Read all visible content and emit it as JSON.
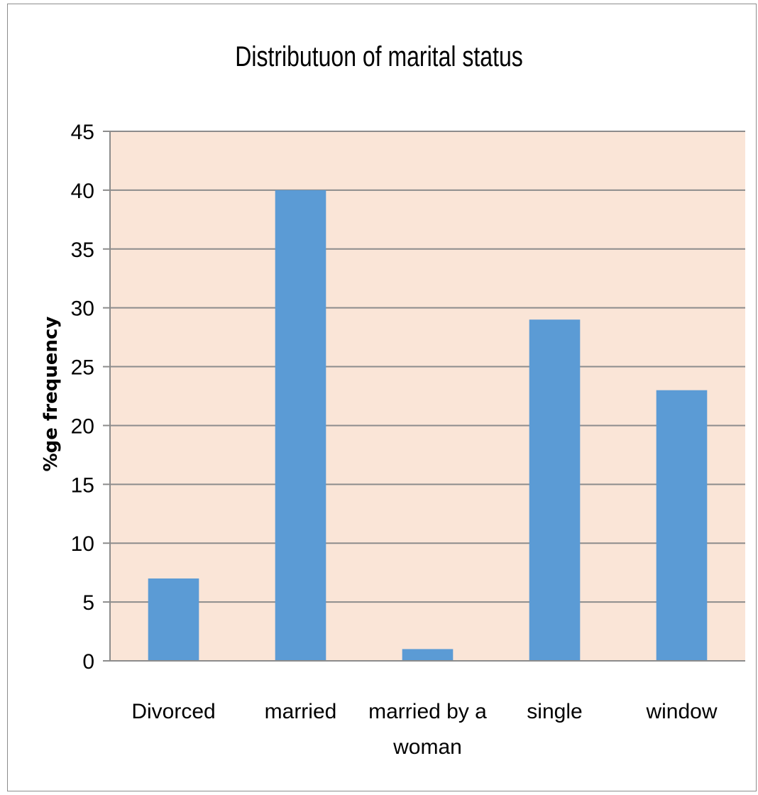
{
  "chart_data": {
    "type": "bar",
    "title": "Distributuon of marital status",
    "xlabel": "",
    "ylabel": "%ge frequency",
    "categories": [
      "Divorced",
      "married",
      "married by a woman",
      "single",
      "window"
    ],
    "category_lines": [
      [
        "Divorced"
      ],
      [
        "married"
      ],
      [
        "married by a",
        "woman"
      ],
      [
        "single"
      ],
      [
        "window"
      ]
    ],
    "values": [
      7,
      40,
      1,
      29,
      23
    ],
    "ylim": [
      0,
      45
    ],
    "yticks": [
      0,
      5,
      10,
      15,
      20,
      25,
      30,
      35,
      40,
      45
    ],
    "grid": true,
    "legend": "none",
    "colors": {
      "bar": "#5b9bd5",
      "plot_background": "#fae5d7",
      "grid": "#8c8c8c"
    }
  }
}
